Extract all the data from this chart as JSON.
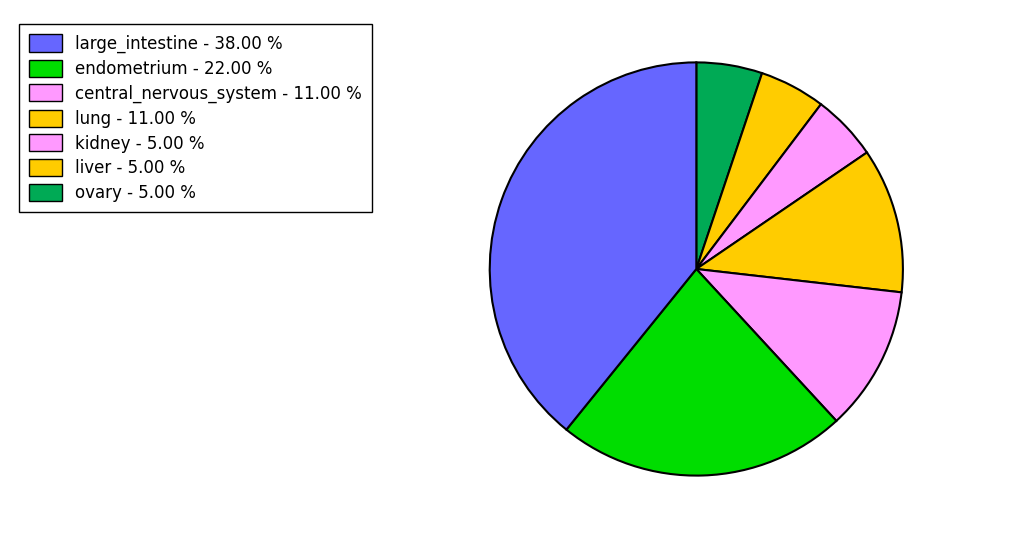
{
  "legend_labels": [
    "large_intestine - 38.00 %",
    "endometrium - 22.00 %",
    "central_nervous_system - 11.00 %",
    "lung - 11.00 %",
    "kidney - 5.00 %",
    "liver - 5.00 %",
    "ovary - 5.00 %"
  ],
  "legend_colors": [
    "#6666ff",
    "#00dd00",
    "#ff99ff",
    "#ffcc00",
    "#ff99ff",
    "#ffcc00",
    "#00aa55"
  ],
  "pie_values": [
    38.0,
    22.0,
    11.0,
    11.0,
    5.0,
    5.0,
    5.0
  ],
  "pie_colors_ordered": [
    "#6666ff",
    "#00dd00",
    "#ff99ff",
    "#ff99ff",
    "#ffcc00",
    "#00aa55",
    "#ffcc00"
  ],
  "pie_labels_ordered": [
    "large_intestine",
    "endometrium",
    "central_nervous_system",
    "kidney",
    "lung",
    "ovary",
    "liver"
  ],
  "pie_values_ordered": [
    38.0,
    22.0,
    11.0,
    5.0,
    11.0,
    5.0,
    5.0
  ],
  "startangle": 90,
  "background_color": "#ffffff"
}
